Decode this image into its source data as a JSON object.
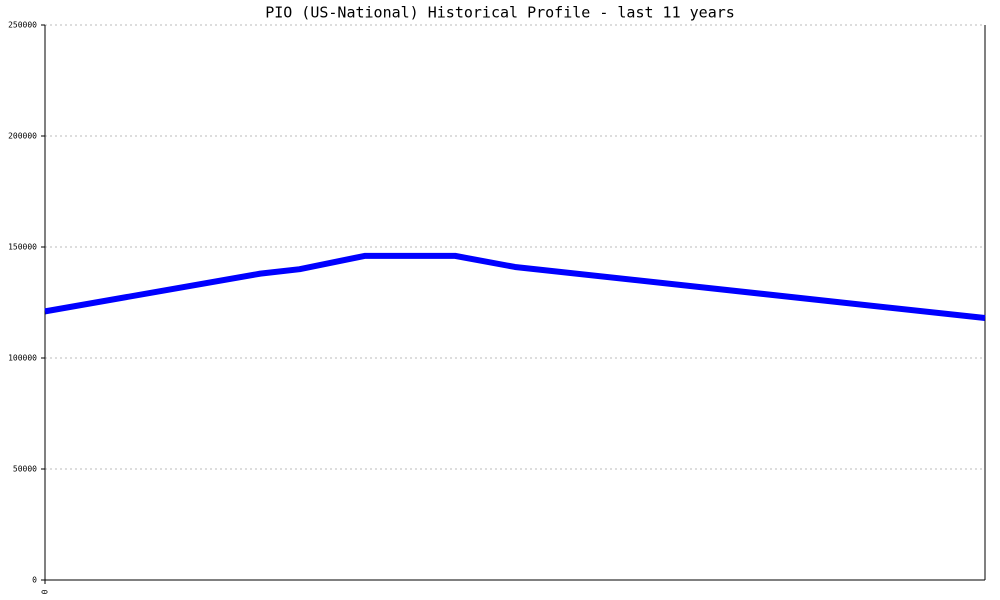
{
  "chart_data": {
    "type": "line",
    "title": "PIO (US-National) Historical Profile - last 11 years",
    "x": [
      0,
      2.52,
      2.98,
      3.74,
      4.8,
      5.5,
      11
    ],
    "series": [
      {
        "name": "PIO",
        "color": "#0000ff",
        "values": [
          121000,
          138000,
          140000,
          146000,
          146000,
          141000,
          118000
        ]
      }
    ],
    "xlim": [
      0,
      11
    ],
    "xticks": [
      0
    ],
    "ylim": [
      0,
      250000
    ],
    "yticks": [
      0,
      50000,
      100000,
      150000,
      200000,
      250000
    ],
    "grid": true
  }
}
